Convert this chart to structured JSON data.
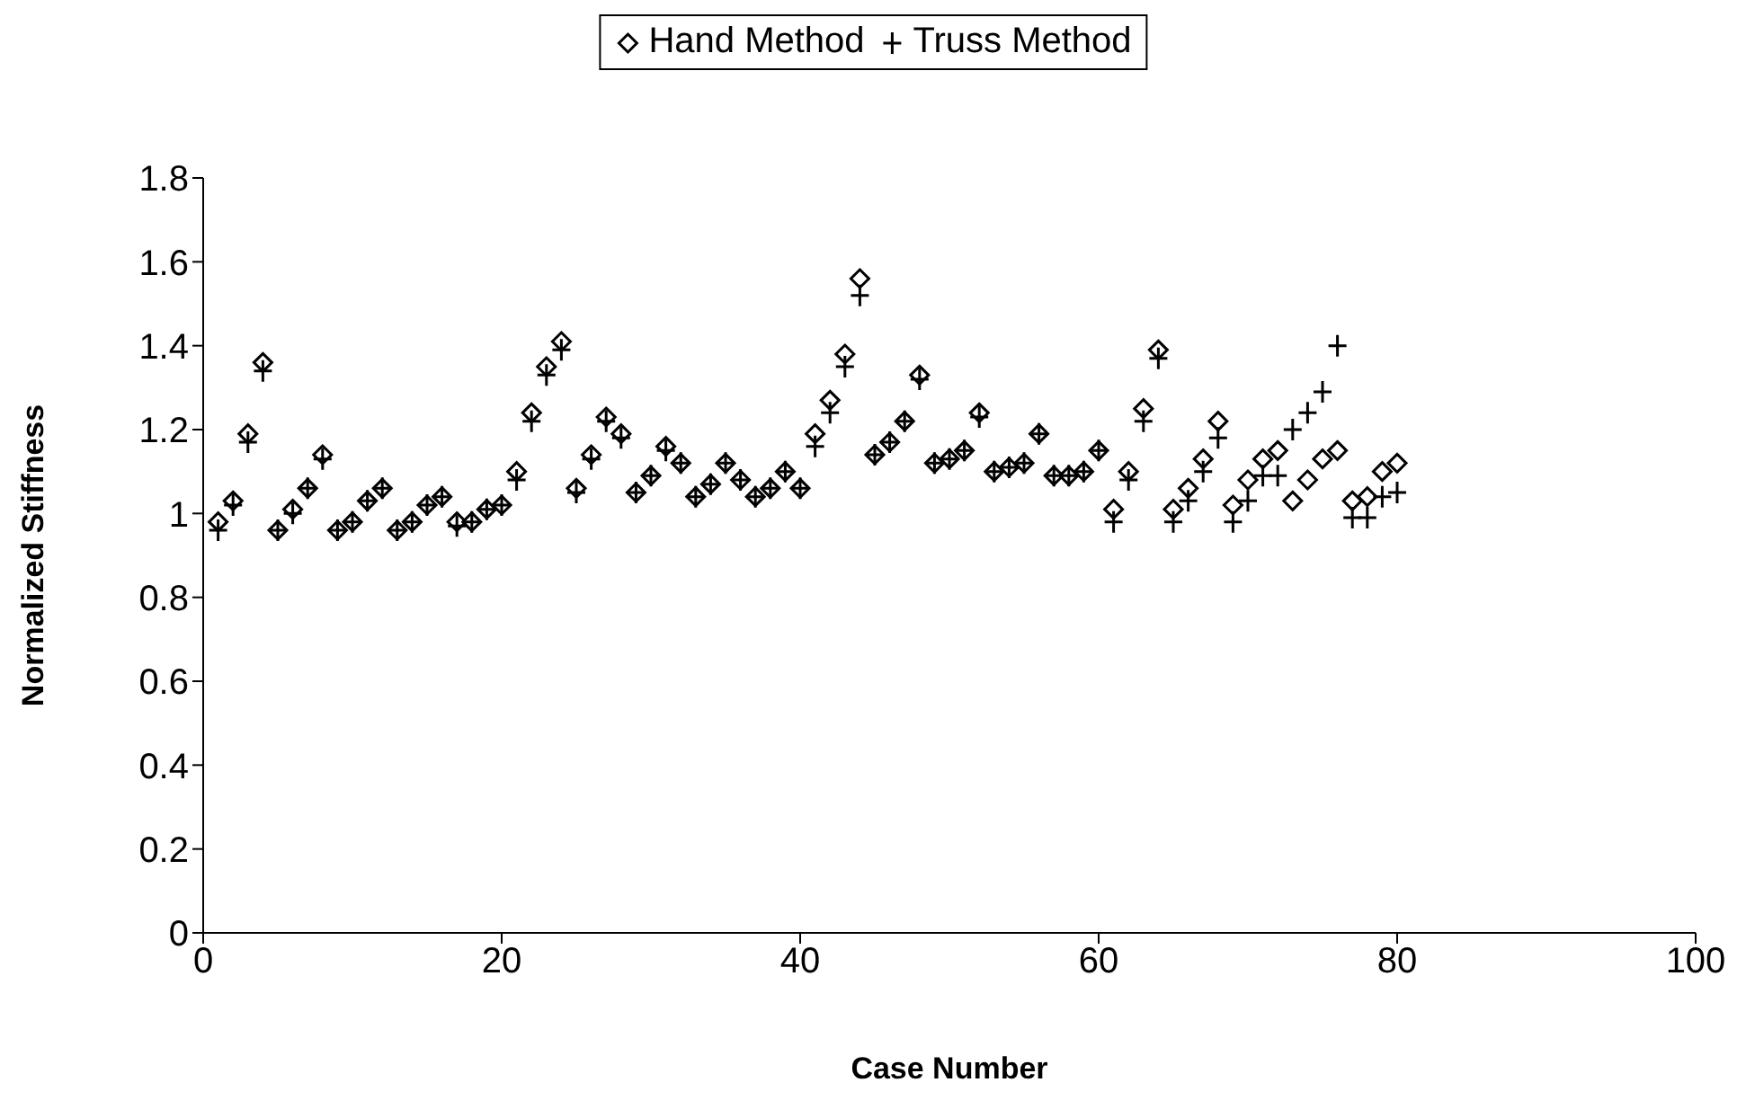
{
  "chart_data": {
    "type": "scatter",
    "xlabel": "Case Number",
    "ylabel": "Normalized Stiffness",
    "xlim": [
      0,
      100
    ],
    "xticks": [
      0,
      20,
      40,
      60,
      80,
      100
    ],
    "ylim": [
      0,
      1.8
    ],
    "yticks": [
      0,
      0.2,
      0.4,
      0.6,
      0.8,
      1,
      1.2,
      1.4,
      1.6,
      1.8
    ],
    "grid": false,
    "legend": "top",
    "x": [
      1,
      2,
      3,
      4,
      5,
      6,
      7,
      8,
      9,
      10,
      11,
      12,
      13,
      14,
      15,
      16,
      17,
      18,
      19,
      20,
      21,
      22,
      23,
      24,
      25,
      26,
      27,
      28,
      29,
      30,
      31,
      32,
      33,
      34,
      35,
      36,
      37,
      38,
      39,
      40,
      41,
      42,
      43,
      44,
      45,
      46,
      47,
      48,
      49,
      50,
      51,
      52,
      53,
      54,
      55,
      56,
      57,
      58,
      59,
      60,
      61,
      62,
      63,
      64,
      65,
      66,
      67,
      68,
      69,
      70,
      71,
      72,
      73,
      74,
      75,
      76,
      77,
      78,
      79,
      80
    ],
    "series": [
      {
        "name": "Hand Method",
        "color": "#000000",
        "marker": "diamond",
        "values": [
          0.98,
          1.03,
          1.19,
          1.36,
          0.96,
          1.01,
          1.06,
          1.14,
          0.96,
          0.98,
          1.03,
          1.06,
          0.96,
          0.98,
          1.02,
          1.04,
          0.98,
          0.98,
          1.01,
          1.02,
          1.1,
          1.24,
          1.35,
          1.41,
          1.06,
          1.14,
          1.23,
          1.19,
          1.05,
          1.09,
          1.16,
          1.12,
          1.04,
          1.07,
          1.12,
          1.08,
          1.04,
          1.06,
          1.1,
          1.06,
          1.19,
          1.27,
          1.38,
          1.56,
          1.14,
          1.17,
          1.22,
          1.33,
          1.12,
          1.13,
          1.15,
          1.24,
          1.1,
          1.11,
          1.12,
          1.19,
          1.09,
          1.09,
          1.1,
          1.15,
          1.01,
          1.1,
          1.25,
          1.39,
          1.01,
          1.06,
          1.13,
          1.22,
          1.02,
          1.08,
          1.13,
          1.15,
          1.03,
          1.08,
          1.13,
          1.15,
          1.03,
          1.04,
          1.1,
          1.12
        ]
      },
      {
        "name": "Truss Method",
        "color": "#000000",
        "marker": "cross",
        "values": [
          0.96,
          1.02,
          1.17,
          1.34,
          0.96,
          1,
          1.06,
          1.13,
          0.96,
          0.98,
          1.03,
          1.06,
          0.96,
          0.98,
          1.02,
          1.04,
          0.97,
          0.98,
          1.01,
          1.02,
          1.08,
          1.22,
          1.33,
          1.39,
          1.05,
          1.13,
          1.22,
          1.18,
          1.05,
          1.09,
          1.15,
          1.12,
          1.04,
          1.07,
          1.12,
          1.08,
          1.04,
          1.06,
          1.1,
          1.06,
          1.16,
          1.24,
          1.35,
          1.52,
          1.14,
          1.17,
          1.22,
          1.32,
          1.12,
          1.13,
          1.15,
          1.23,
          1.1,
          1.11,
          1.12,
          1.19,
          1.09,
          1.09,
          1.1,
          1.15,
          0.98,
          1.08,
          1.22,
          1.37,
          0.98,
          1.03,
          1.1,
          1.18,
          0.98,
          1.03,
          1.09,
          1.09,
          1.2,
          1.24,
          1.29,
          1.4,
          0.99,
          0.99,
          1.04,
          1.05
        ]
      }
    ]
  }
}
